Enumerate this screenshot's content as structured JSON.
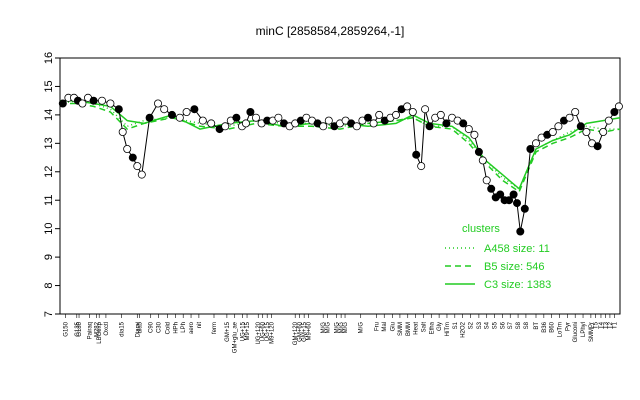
{
  "chart_data": {
    "type": "line",
    "title": "minC [2858584,2859264,-1]",
    "xlabel": "",
    "ylabel": "",
    "ylim": [
      7,
      16
    ],
    "yticks": [
      7,
      8,
      9,
      10,
      11,
      12,
      13,
      14,
      15,
      16
    ],
    "xlim": [
      0,
      100
    ],
    "x_tick_labels": [
      {
        "x": 1.0,
        "label": "G150"
      },
      {
        "x": 3.0,
        "label": "G135"
      },
      {
        "x": 3.4,
        "label": "G180"
      },
      {
        "x": 5.3,
        "label": "Pairaq"
      },
      {
        "x": 6.5,
        "label": "M282"
      },
      {
        "x": 7.0,
        "label": "LBGexp"
      },
      {
        "x": 8.2,
        "label": "Oxctl"
      },
      {
        "x": 11.0,
        "label": "dia15"
      },
      {
        "x": 13.8,
        "label": "Diami"
      },
      {
        "x": 14.2,
        "label": "dia5"
      },
      {
        "x": 16.2,
        "label": "C90"
      },
      {
        "x": 17.6,
        "label": "C30"
      },
      {
        "x": 19.2,
        "label": "Cold"
      },
      {
        "x": 20.6,
        "label": "HPh"
      },
      {
        "x": 22.0,
        "label": "LPh"
      },
      {
        "x": 23.4,
        "label": "aero"
      },
      {
        "x": 24.8,
        "label": "nit"
      },
      {
        "x": 27.5,
        "label": "ferm"
      },
      {
        "x": 29.8,
        "label": "GM+15"
      },
      {
        "x": 31.2,
        "label": "GM+glu_ae"
      },
      {
        "x": 32.6,
        "label": "UG+15"
      },
      {
        "x": 33.4,
        "label": "M9+15"
      },
      {
        "x": 35.4,
        "label": "UG+120"
      },
      {
        "x": 36.2,
        "label": "UG+60"
      },
      {
        "x": 37.0,
        "label": "UG+15"
      },
      {
        "x": 37.8,
        "label": "M9+120"
      },
      {
        "x": 42.0,
        "label": "GM+120"
      },
      {
        "x": 42.8,
        "label": "GM+60"
      },
      {
        "x": 43.6,
        "label": "GM+15"
      },
      {
        "x": 44.4,
        "label": "M9+60"
      },
      {
        "x": 47.0,
        "label": "M/G"
      },
      {
        "x": 47.8,
        "label": "M/G"
      },
      {
        "x": 49.4,
        "label": "M/G"
      },
      {
        "x": 50.2,
        "label": "M/G"
      },
      {
        "x": 50.9,
        "label": "M/G"
      },
      {
        "x": 53.7,
        "label": "M/G"
      },
      {
        "x": 56.5,
        "label": "Fru"
      },
      {
        "x": 57.9,
        "label": "Mal"
      },
      {
        "x": 59.4,
        "label": "Glu"
      },
      {
        "x": 60.7,
        "label": "SMM"
      },
      {
        "x": 62.1,
        "label": "BMM"
      },
      {
        "x": 63.5,
        "label": "Heat"
      },
      {
        "x": 64.9,
        "label": "Salt"
      },
      {
        "x": 66.3,
        "label": "Etha"
      },
      {
        "x": 67.7,
        "label": "Gly"
      },
      {
        "x": 69.1,
        "label": "HiTm"
      },
      {
        "x": 70.5,
        "label": "S1"
      },
      {
        "x": 71.9,
        "label": "H2O2"
      },
      {
        "x": 73.3,
        "label": "S2"
      },
      {
        "x": 74.8,
        "label": "S3"
      },
      {
        "x": 76.2,
        "label": "S4"
      },
      {
        "x": 77.6,
        "label": "S5"
      },
      {
        "x": 79.0,
        "label": "S6"
      },
      {
        "x": 80.4,
        "label": "S7"
      },
      {
        "x": 81.8,
        "label": "S8"
      },
      {
        "x": 83.2,
        "label": "S8"
      },
      {
        "x": 85.0,
        "label": "BT"
      },
      {
        "x": 86.4,
        "label": "B36"
      },
      {
        "x": 87.8,
        "label": "B60"
      },
      {
        "x": 89.2,
        "label": "LoTm"
      },
      {
        "x": 90.6,
        "label": "Pyr"
      },
      {
        "x": 92.0,
        "label": "Gluconi"
      },
      {
        "x": 93.4,
        "label": "LPhyl"
      },
      {
        "x": 94.8,
        "label": "SMMPr"
      },
      {
        "x": 95.6,
        "label": "T5"
      },
      {
        "x": 96.6,
        "label": "T4"
      },
      {
        "x": 97.4,
        "label": "T3"
      },
      {
        "x": 98.2,
        "label": "T2"
      },
      {
        "x": 99.0,
        "label": "T1"
      }
    ],
    "series": [
      {
        "name": "A458 size: 11",
        "style": "dotted",
        "color": "#22cc22",
        "x": [
          0,
          3,
          6,
          9,
          12,
          15,
          20,
          25,
          30,
          35,
          40,
          45,
          50,
          55,
          60,
          63,
          66,
          70,
          73,
          76,
          79,
          82,
          85,
          88,
          91,
          94,
          97,
          100
        ],
        "values": [
          14.4,
          14.5,
          14.4,
          14.2,
          13.6,
          13.8,
          13.9,
          13.7,
          13.6,
          13.8,
          13.7,
          13.7,
          13.6,
          13.7,
          13.8,
          13.9,
          13.6,
          13.6,
          13.1,
          12.4,
          11.8,
          11.4,
          12.8,
          13.1,
          13.4,
          13.6,
          13.5,
          13.5
        ]
      },
      {
        "name": "B5 size: 546",
        "style": "dashed",
        "color": "#22cc22",
        "x": [
          0,
          3,
          6,
          9,
          12,
          15,
          20,
          25,
          30,
          35,
          40,
          45,
          50,
          55,
          60,
          63,
          66,
          70,
          73,
          76,
          79,
          82,
          85,
          88,
          91,
          94,
          97,
          100
        ],
        "values": [
          14.4,
          14.4,
          14.3,
          14.1,
          13.5,
          13.7,
          13.9,
          13.6,
          13.5,
          13.7,
          13.6,
          13.6,
          13.5,
          13.7,
          13.8,
          13.9,
          13.6,
          13.5,
          13.0,
          12.3,
          11.7,
          11.3,
          12.7,
          13.0,
          13.2,
          13.5,
          13.4,
          13.5
        ]
      },
      {
        "name": "C3 size: 1383",
        "style": "solid",
        "color": "#22cc22",
        "x": [
          0,
          3,
          6,
          9,
          12,
          15,
          20,
          25,
          30,
          35,
          40,
          45,
          50,
          55,
          60,
          63,
          66,
          70,
          73,
          76,
          79,
          82,
          85,
          88,
          91,
          94,
          97,
          100
        ],
        "values": [
          14.5,
          14.5,
          14.4,
          14.3,
          13.8,
          13.7,
          14.0,
          13.5,
          13.7,
          13.8,
          13.6,
          13.7,
          13.7,
          13.6,
          13.7,
          14.0,
          13.7,
          13.6,
          13.2,
          12.4,
          11.9,
          11.4,
          12.8,
          13.1,
          13.3,
          13.7,
          13.8,
          13.9
        ]
      }
    ],
    "points": {
      "x": [
        0.5,
        1.5,
        2.5,
        3.2,
        4.0,
        5.0,
        6.0,
        7.5,
        9.0,
        10.5,
        11.2,
        12.0,
        13.0,
        13.8,
        14.6,
        16.0,
        17.5,
        18.6,
        20.0,
        21.4,
        22.6,
        24.0,
        25.5,
        27.0,
        28.5,
        29.5,
        30.5,
        31.5,
        32.5,
        33.2,
        34.0,
        35.0,
        36.0,
        37.0,
        38.0,
        39.0,
        40.0,
        41.0,
        42.0,
        43.0,
        44.0,
        45.0,
        46.0,
        47.0,
        48.0,
        49.0,
        50.0,
        51.0,
        52.0,
        53.0,
        54.0,
        55.0,
        56.0,
        57.0,
        58.0,
        59.0,
        60.0,
        61.0,
        62.0,
        63.0,
        63.6,
        64.5,
        65.2,
        66.0,
        67.0,
        68.0,
        69.0,
        70.0,
        71.0,
        72.0,
        73.0,
        74.0,
        74.8,
        75.5,
        76.2,
        77.0,
        77.8,
        78.6,
        79.4,
        80.2,
        81.0,
        81.6,
        82.2,
        83.0,
        84.0,
        85.0,
        86.0,
        87.0,
        88.0,
        89.0,
        90.0,
        91.0,
        92.0,
        93.0,
        94.0,
        95.0,
        96.0,
        97.0,
        98.0,
        99.0,
        99.8
      ],
      "values": [
        14.4,
        14.6,
        14.6,
        14.5,
        14.4,
        14.6,
        14.5,
        14.5,
        14.4,
        14.2,
        13.4,
        12.8,
        12.5,
        12.2,
        11.9,
        13.9,
        14.4,
        14.2,
        14.0,
        13.9,
        14.1,
        14.2,
        13.8,
        13.7,
        13.5,
        13.6,
        13.8,
        13.9,
        13.6,
        13.7,
        14.1,
        13.9,
        13.7,
        13.8,
        13.8,
        13.9,
        13.7,
        13.6,
        13.7,
        13.8,
        13.9,
        13.8,
        13.7,
        13.6,
        13.8,
        13.6,
        13.7,
        13.8,
        13.7,
        13.6,
        13.8,
        13.9,
        13.7,
        14.0,
        13.8,
        13.9,
        14.0,
        14.2,
        14.3,
        14.1,
        12.6,
        12.2,
        14.2,
        13.6,
        13.9,
        14.0,
        13.7,
        13.9,
        13.8,
        13.7,
        13.5,
        13.3,
        12.7,
        12.4,
        11.7,
        11.4,
        11.1,
        11.2,
        11.0,
        11.0,
        11.2,
        10.9,
        9.9,
        10.7,
        12.8,
        13.0,
        13.2,
        13.3,
        13.4,
        13.6,
        13.8,
        13.9,
        14.1,
        13.6,
        13.4,
        13.0,
        12.9,
        13.4,
        13.8,
        14.1,
        14.3
      ]
    },
    "legend": {
      "title": "clusters",
      "placement": "right",
      "entries": [
        "A458 size: 11",
        "B5 size: 546",
        "C3 size: 1383"
      ]
    },
    "grid": false
  }
}
